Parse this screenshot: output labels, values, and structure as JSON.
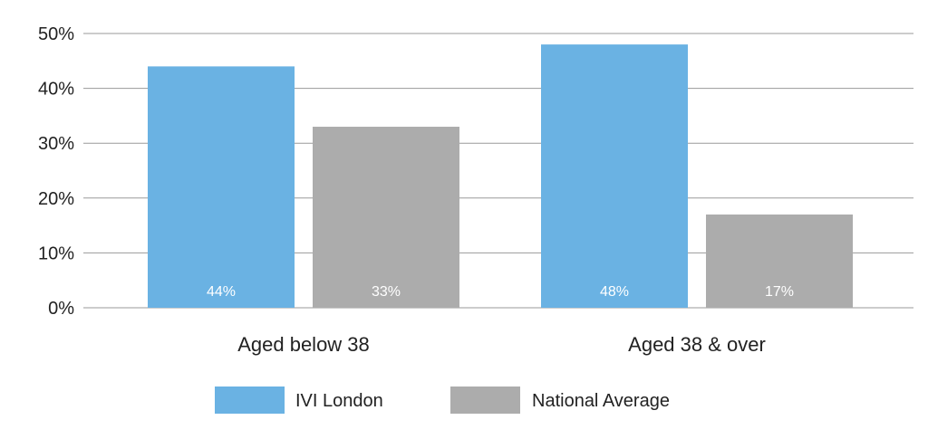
{
  "chart_data": {
    "type": "bar",
    "categories": [
      "Aged below 38",
      "Aged 38 & over"
    ],
    "series": [
      {
        "name": "IVI London",
        "values": [
          44,
          48
        ],
        "labels": [
          "44%",
          "48%"
        ],
        "color": "#6ab2e3"
      },
      {
        "name": "National Average",
        "values": [
          33,
          17
        ],
        "labels": [
          "33%",
          "17%"
        ],
        "color": "#acacac"
      }
    ],
    "ylim": [
      0,
      50
    ],
    "yticks": [
      0,
      10,
      20,
      30,
      40,
      50
    ],
    "ytick_labels": [
      "0%",
      "10%",
      "20%",
      "30%",
      "40%",
      "50%"
    ],
    "grid": true,
    "legend_position": "bottom-center",
    "title": "",
    "xlabel": "",
    "ylabel": ""
  }
}
